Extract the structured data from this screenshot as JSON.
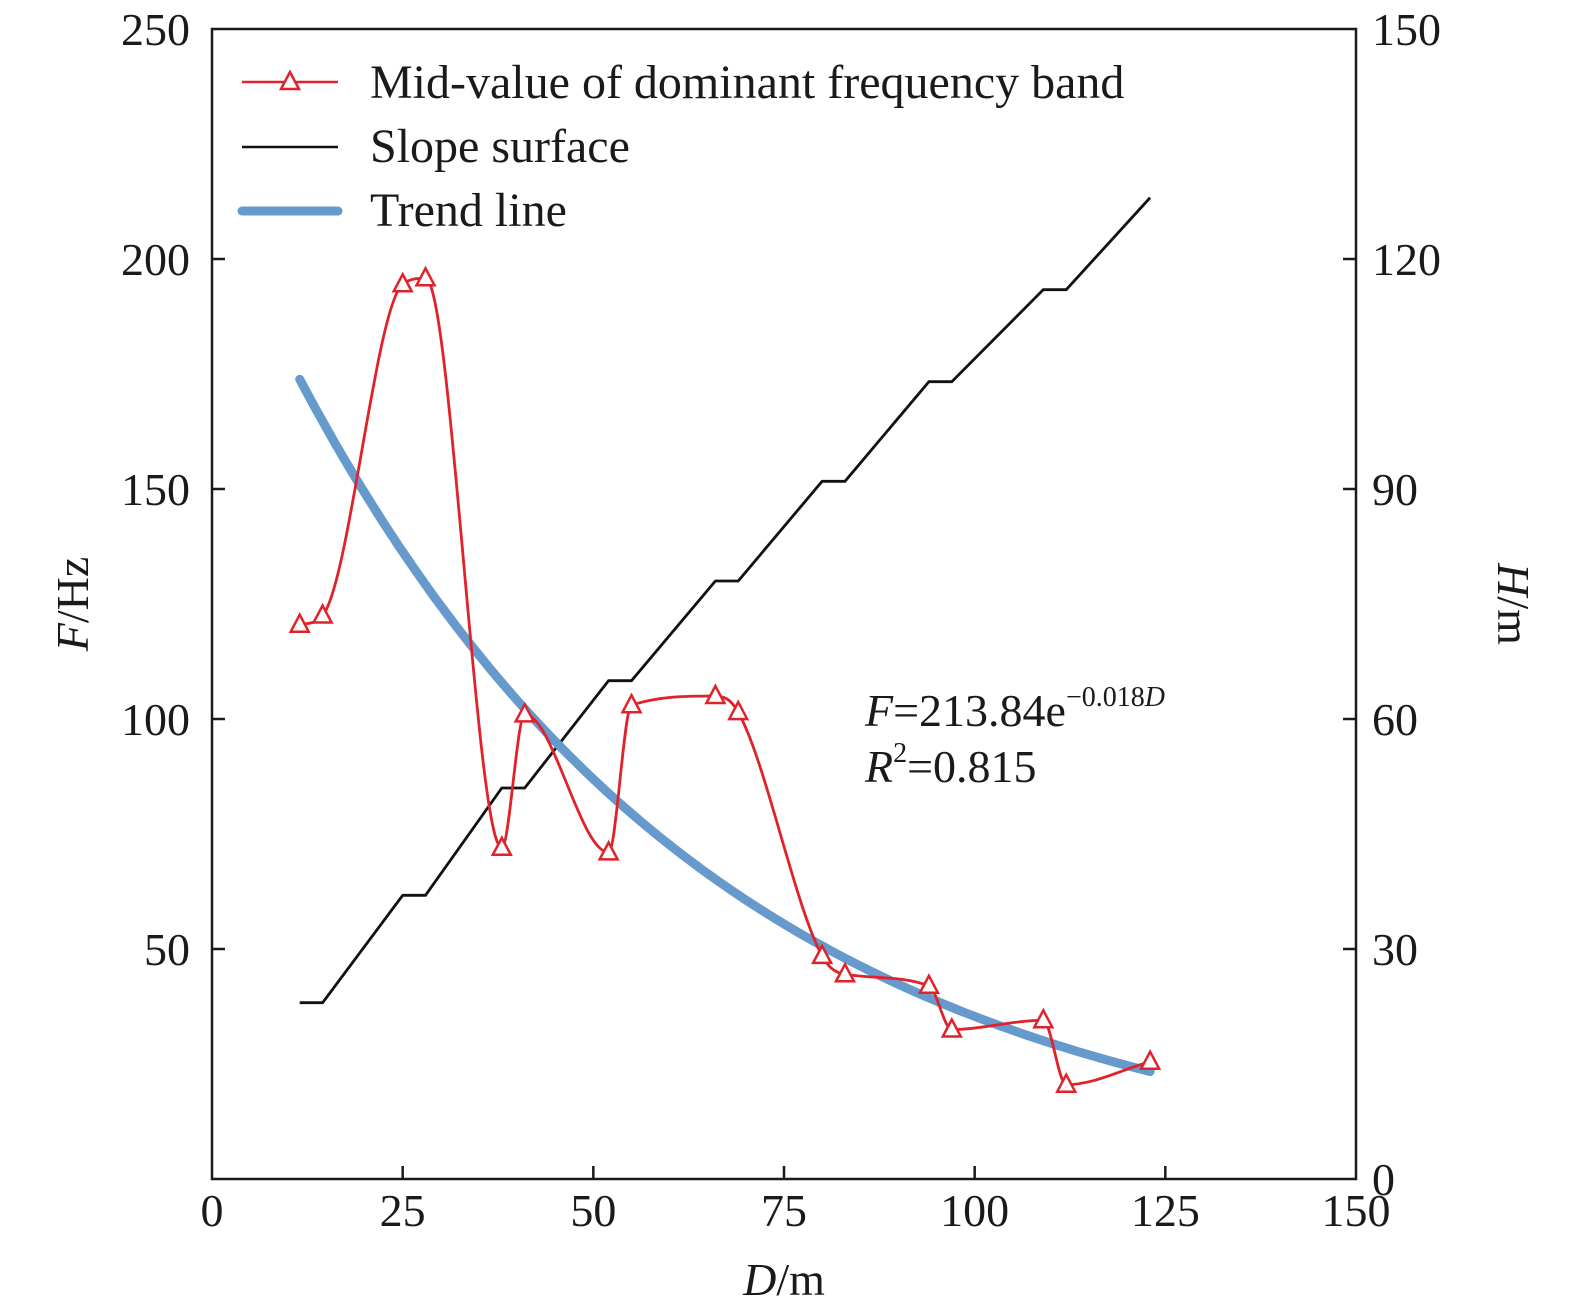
{
  "chart_data": {
    "type": "line",
    "x_axis": {
      "label_var": "D",
      "label_unit": "/m",
      "range": [
        0,
        150
      ],
      "ticks": [
        0,
        25,
        50,
        75,
        100,
        125,
        150
      ]
    },
    "y_left": {
      "label_var": "F",
      "label_unit": "/Hz",
      "range": [
        0,
        250
      ],
      "ticks": [
        50,
        100,
        150,
        200,
        250
      ]
    },
    "y_right": {
      "label_var": "H",
      "label_unit": "/m",
      "range": [
        0,
        150
      ],
      "ticks": [
        0,
        30,
        60,
        90,
        120,
        150
      ]
    },
    "grid": false,
    "legend_position": "top-left",
    "series": [
      {
        "name": "Mid-value of dominant frequency band",
        "color": "#e0222b",
        "axis": "left",
        "marker": "open-triangle",
        "smooth": true,
        "x": [
          11.5,
          14.5,
          25.0,
          28.0,
          38.0,
          41.0,
          52.0,
          55.0,
          66.0,
          69.0,
          80.0,
          83.0,
          94.0,
          97.0,
          109.0,
          112.0,
          123.0
        ],
        "y": [
          120.5,
          122.5,
          194.5,
          195.8,
          72.0,
          101.0,
          71.0,
          103.0,
          105.0,
          101.5,
          48.5,
          44.5,
          42.0,
          32.5,
          34.5,
          20.5,
          25.5
        ]
      },
      {
        "name": "Slope surface",
        "color": "#111111",
        "axis": "right",
        "x": [
          11.5,
          14.5,
          25.0,
          28.0,
          38.0,
          41.0,
          52.0,
          55.0,
          66.0,
          69.0,
          80.0,
          83.0,
          94.0,
          97.0,
          109.0,
          112.0,
          123.0
        ],
        "y": [
          23.0,
          23.0,
          37.0,
          37.0,
          51.0,
          51.0,
          65.0,
          65.0,
          78.0,
          78.0,
          91.0,
          91.0,
          104.0,
          104.0,
          116.0,
          116.0,
          128.0
        ]
      },
      {
        "name": "Trend line",
        "color": "#6699cc",
        "axis": "left",
        "equation": {
          "a": 213.84,
          "b": -0.018
        },
        "x_range": [
          11.5,
          123.0
        ]
      }
    ],
    "annotation": {
      "eq_var": "F",
      "eq_main": "=213.84e",
      "eq_exp": "−0.018",
      "eq_exp_var": "D",
      "r2_var": "R",
      "r2_sup": "2",
      "r2_rest": "=0.815"
    }
  }
}
